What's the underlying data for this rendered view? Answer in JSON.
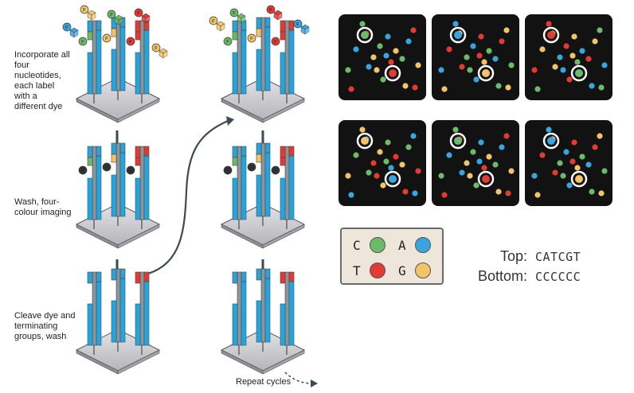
{
  "steps": {
    "incorporate": "Incorporate all four nucleotides, each label with a different dye",
    "wash": "Wash, four-colour imaging",
    "cleave": "Cleave dye and terminating groups, wash",
    "repeat": "Repeat cycles"
  },
  "legend": [
    {
      "letter": "C",
      "color": "#6dbb6a"
    },
    {
      "letter": "A",
      "color": "#3aa4dd"
    },
    {
      "letter": "T",
      "color": "#e03b34"
    },
    {
      "letter": "G",
      "color": "#f2c46a"
    }
  ],
  "sequences": {
    "top_label": "Top:",
    "top_value": "CATCGT",
    "bottom_label": "Bottom:",
    "bottom_value": "CCCCCC"
  },
  "nucleotide_letters": [
    "G",
    "C",
    "T",
    "A"
  ],
  "dye_letter": "F",
  "colors": {
    "C": "#6dbb6a",
    "A": "#3aa4dd",
    "T": "#e03b34",
    "G": "#f2c46a",
    "strand": "#29a3d8",
    "plate": "#c9c9cc",
    "panel_bg": "#121212"
  }
}
